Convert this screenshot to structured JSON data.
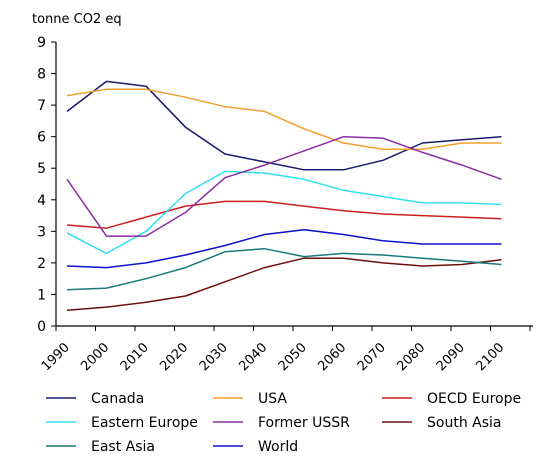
{
  "chart_data": {
    "type": "line",
    "ylabel": "tonne CO2 eq",
    "ylim": [
      0,
      9
    ],
    "yticks": [
      0,
      1,
      2,
      3,
      4,
      5,
      6,
      7,
      8,
      9
    ],
    "x_tick_labels": [
      "1990",
      "2000",
      "2010",
      "2020",
      "2030",
      "2040",
      "2050",
      "2060",
      "2070",
      "2080",
      "2090",
      "2100"
    ],
    "grid": false,
    "legend_position": "bottom",
    "series": [
      {
        "name": "Canada",
        "color": "#1a1a6e",
        "values": [
          6.8,
          7.75,
          7.6,
          6.3,
          5.45,
          5.2,
          4.95,
          4.95,
          5.25,
          5.8,
          5.9,
          6.0
        ]
      },
      {
        "name": "USA",
        "color": "#f0a030",
        "values": [
          7.3,
          7.5,
          7.5,
          7.25,
          6.95,
          6.8,
          6.25,
          5.8,
          5.6,
          5.6,
          5.8,
          5.8
        ]
      },
      {
        "name": "OECD Europe",
        "color": "#cc1f1f",
        "values": [
          3.2,
          3.1,
          3.45,
          3.8,
          3.95,
          3.95,
          3.8,
          3.65,
          3.55,
          3.5,
          3.45,
          3.4
        ]
      },
      {
        "name": "Eastern Europe",
        "color": "#33e0f0",
        "values": [
          2.95,
          2.3,
          3.0,
          4.2,
          4.9,
          4.85,
          4.65,
          4.3,
          4.1,
          3.9,
          3.9,
          3.85
        ]
      },
      {
        "name": "Former USSR",
        "color": "#8a2da0",
        "values": [
          4.65,
          2.85,
          2.85,
          3.6,
          4.7,
          5.1,
          5.55,
          6.0,
          5.95,
          5.5,
          5.1,
          4.65
        ]
      },
      {
        "name": "South Asia",
        "color": "#6e1010",
        "values": [
          0.5,
          0.6,
          0.75,
          0.95,
          1.4,
          1.85,
          2.15,
          2.15,
          2.0,
          1.9,
          1.95,
          2.1
        ]
      },
      {
        "name": "East Asia",
        "color": "#1a7a7a",
        "values": [
          1.15,
          1.2,
          1.5,
          1.85,
          2.35,
          2.45,
          2.2,
          2.3,
          2.25,
          2.15,
          2.05,
          1.95
        ]
      },
      {
        "name": "World",
        "color": "#1010cc",
        "values": [
          1.9,
          1.85,
          2.0,
          2.25,
          2.55,
          2.9,
          3.05,
          2.9,
          2.7,
          2.6,
          2.6,
          2.6
        ]
      }
    ]
  }
}
